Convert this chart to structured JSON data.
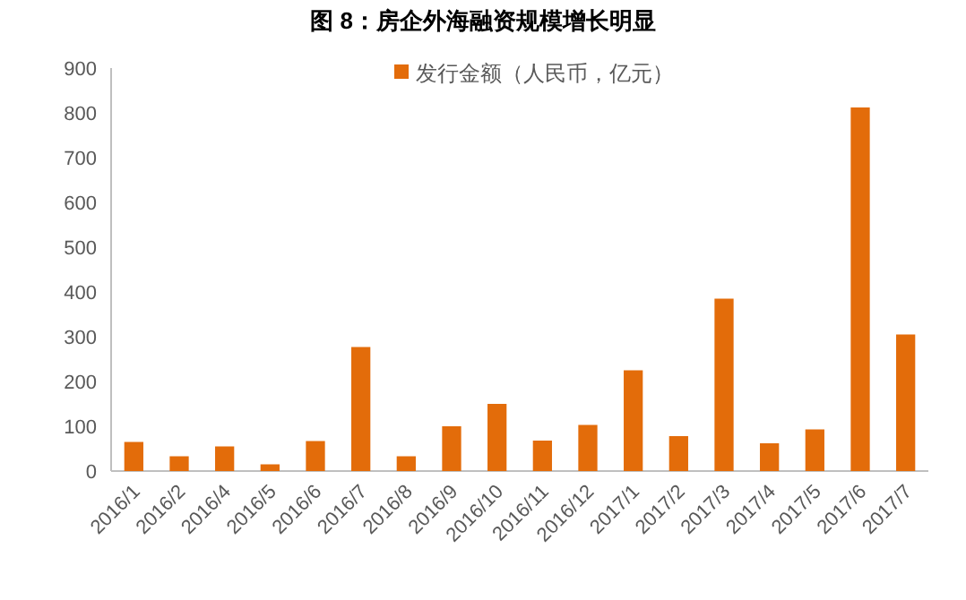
{
  "chart_data": {
    "type": "bar",
    "title": "图 8：房企外海融资规模增长明显",
    "categories": [
      "2016/1",
      "2016/2",
      "2016/4",
      "2016/5",
      "2016/6",
      "2016/7",
      "2016/8",
      "2016/9",
      "2016/10",
      "2016/11",
      "2016/12",
      "2017/1",
      "2017/2",
      "2017/3",
      "2017/4",
      "2017/5",
      "2017/6",
      "2017/7"
    ],
    "series": [
      {
        "name": "发行金额（人民币，亿元）",
        "color": "#e36c0a",
        "values": [
          65,
          33,
          55,
          15,
          67,
          277,
          33,
          100,
          150,
          68,
          103,
          225,
          78,
          385,
          62,
          93,
          812,
          305
        ]
      }
    ],
    "ylim": [
      0,
      900
    ],
    "yticks": [
      0,
      100,
      200,
      300,
      400,
      500,
      600,
      700,
      800,
      900
    ],
    "grid": false,
    "legend": "top"
  }
}
